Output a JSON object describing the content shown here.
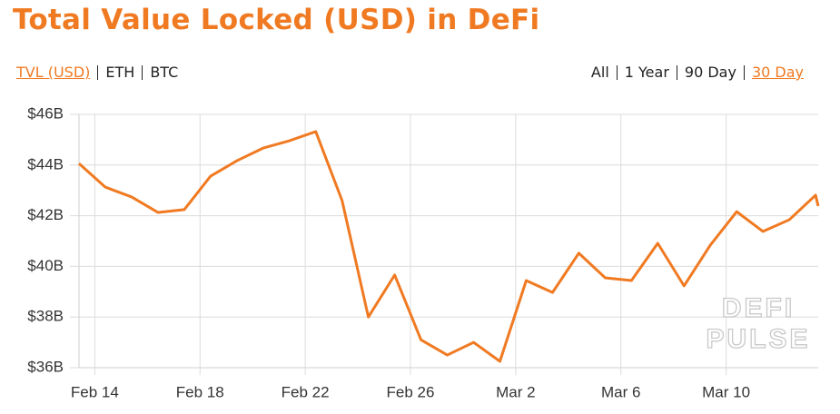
{
  "chart_data": {
    "type": "line",
    "title": "Total Value Locked (USD) in DeFi",
    "currency_tabs": [
      "TVL (USD)",
      "ETH",
      "BTC"
    ],
    "range_tabs": [
      "All",
      "1 Year",
      "90 Day",
      "30 Day"
    ],
    "watermark": [
      "DEFI",
      "PULSE"
    ],
    "x": [
      44.4,
      45.4,
      46.4,
      47.4,
      48.4,
      49.4,
      50.4,
      51.4,
      52.4,
      53.4,
      54.4,
      55.4,
      56.4,
      57.4,
      58.4,
      59.4,
      60.4,
      61.4,
      62.4,
      63.4,
      64.4,
      65.4,
      66.4,
      67.4,
      68.4,
      69.4,
      70.4,
      71.4,
      72.4,
      72.5
    ],
    "series": [
      {
        "name": "TVL (USD)",
        "color": "#f07a22",
        "values": [
          44.06,
          43.13,
          42.74,
          42.13,
          42.24,
          43.56,
          44.17,
          44.67,
          44.96,
          45.32,
          42.6,
          38.0,
          39.66,
          37.1,
          36.5,
          37.0,
          36.25,
          39.44,
          38.97,
          40.52,
          39.55,
          39.44,
          40.91,
          39.23,
          40.84,
          42.16,
          41.38,
          41.84,
          42.81,
          42.38
        ]
      }
    ],
    "xlim": [
      44.4,
      72.5
    ],
    "xticks": [
      {
        "value": 45,
        "label": "Feb 14"
      },
      {
        "value": 49,
        "label": "Feb 18"
      },
      {
        "value": 53,
        "label": "Feb 22"
      },
      {
        "value": 57,
        "label": "Feb 26"
      },
      {
        "value": 61,
        "label": "Mar 2"
      },
      {
        "value": 65,
        "label": "Mar 6"
      },
      {
        "value": 69,
        "label": "Mar 10"
      }
    ],
    "ylim": [
      36,
      46
    ],
    "yticks": [
      {
        "value": 36,
        "label": "$36B"
      },
      {
        "value": 38,
        "label": "$38B"
      },
      {
        "value": 40,
        "label": "$40B"
      },
      {
        "value": 42,
        "label": "$42B"
      },
      {
        "value": 44,
        "label": "$44B"
      },
      {
        "value": 46,
        "label": "$46B"
      }
    ],
    "grid": true
  }
}
